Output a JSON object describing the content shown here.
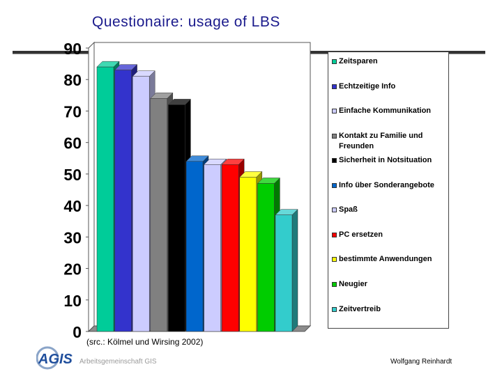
{
  "slide": {
    "title": "Questionaire: usage of LBS",
    "source_note": "(src.: Kölmel und Wirsing  2002)",
    "org_name": "Arbeitsgemeinschaft GIS",
    "logo_text": "AGIS",
    "author": "Wolfgang Reinhardt"
  },
  "chart_data": {
    "type": "bar",
    "title": "",
    "xlabel": "",
    "ylabel": "",
    "ylim": [
      0,
      90
    ],
    "yticks": [
      "0",
      "10",
      "20",
      "30",
      "40",
      "50",
      "60",
      "70",
      "80",
      "90"
    ],
    "grid": false,
    "legend_position": "right",
    "style": "3d",
    "series": [
      {
        "name": "Zeitsparen",
        "value": 84,
        "color": "#00cc99"
      },
      {
        "name": "Echtzeitige Info",
        "value": 83,
        "color": "#3333cc"
      },
      {
        "name": "Einfache Kommunikation",
        "value": 81,
        "color": "#ccccff"
      },
      {
        "name": "Kontakt zu Familie und Freunden",
        "value": 74,
        "color": "#808080"
      },
      {
        "name": "Sicherheit in Notsituation",
        "value": 72,
        "color": "#000000"
      },
      {
        "name": "Info über Sonderangebote",
        "value": 54,
        "color": "#0066cc"
      },
      {
        "name": "Spaß",
        "value": 53,
        "color": "#ccccff"
      },
      {
        "name": "PC ersetzen",
        "value": 53,
        "color": "#ff0000"
      },
      {
        "name": "bestimmte Anwendungen",
        "value": 49,
        "color": "#ffff00"
      },
      {
        "name": "Neugier",
        "value": 47,
        "color": "#00cc00"
      },
      {
        "name": "Zeitvertreib",
        "value": 37,
        "color": "#33cccc"
      }
    ]
  }
}
